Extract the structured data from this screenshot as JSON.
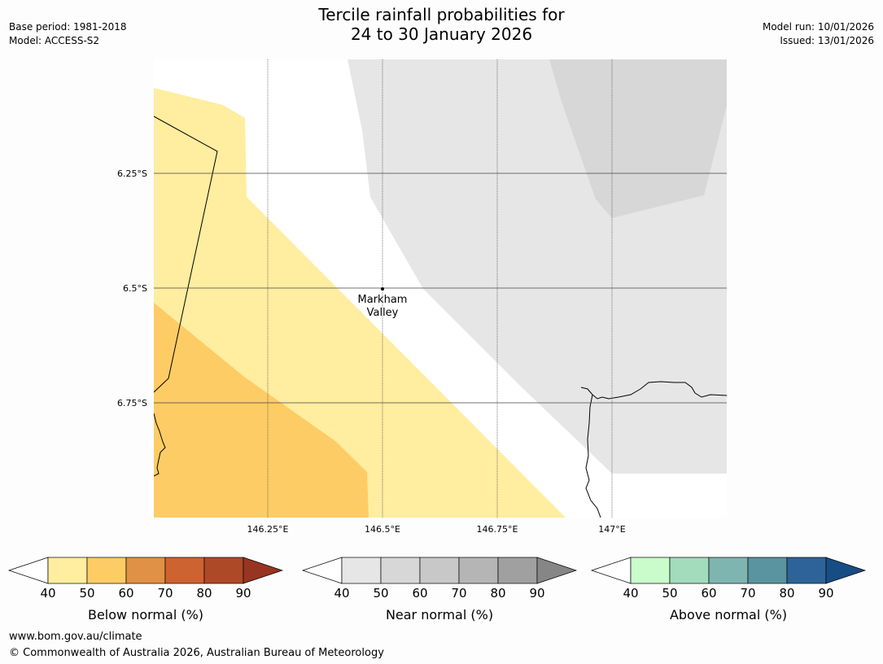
{
  "title": {
    "line1": "Tercile rainfall probabilities for",
    "line2": "24 to 30 January 2026"
  },
  "meta_left": {
    "base_period": "Base period: 1981-2018",
    "model": "Model: ACCESS-S2"
  },
  "meta_right": {
    "model_run": "Model run: 10/01/2026",
    "issued": "Issued: 13/01/2026"
  },
  "map": {
    "lat_labels": [
      "6.25°S",
      "6.5°S",
      "6.75°S"
    ],
    "lon_labels": [
      "146.25°E",
      "146.5°E",
      "146.75°E",
      "147°E"
    ],
    "place": {
      "name_line1": "Markham",
      "name_line2": "Valley",
      "lat": "6.5°S",
      "lon": "146.5°E"
    }
  },
  "legends": [
    {
      "label": "Below normal (%)",
      "ticks": [
        "40",
        "50",
        "60",
        "70",
        "80",
        "90"
      ],
      "colors": [
        "#ffffff",
        "#ffeda0",
        "#fecc65",
        "#e09145",
        "#cd6331",
        "#ae4927",
        "#983422"
      ]
    },
    {
      "label": "Near normal (%)",
      "ticks": [
        "40",
        "50",
        "60",
        "70",
        "80",
        "90"
      ],
      "colors": [
        "#ffffff",
        "#e6e6e6",
        "#d7d7d7",
        "#c8c8c8",
        "#b5b5b5",
        "#a0a0a0",
        "#868686"
      ]
    },
    {
      "label": "Above normal (%)",
      "ticks": [
        "40",
        "50",
        "60",
        "70",
        "80",
        "90"
      ],
      "colors": [
        "#ffffff",
        "#c9fcca",
        "#a3dbbd",
        "#7fb5b0",
        "#5a94a0",
        "#2e6399",
        "#184c85"
      ]
    }
  ],
  "footer": {
    "website": "www.bom.gov.au/climate",
    "copyright": "© Commonwealth of Australia 2026, Australian Bureau of Meteorology"
  }
}
